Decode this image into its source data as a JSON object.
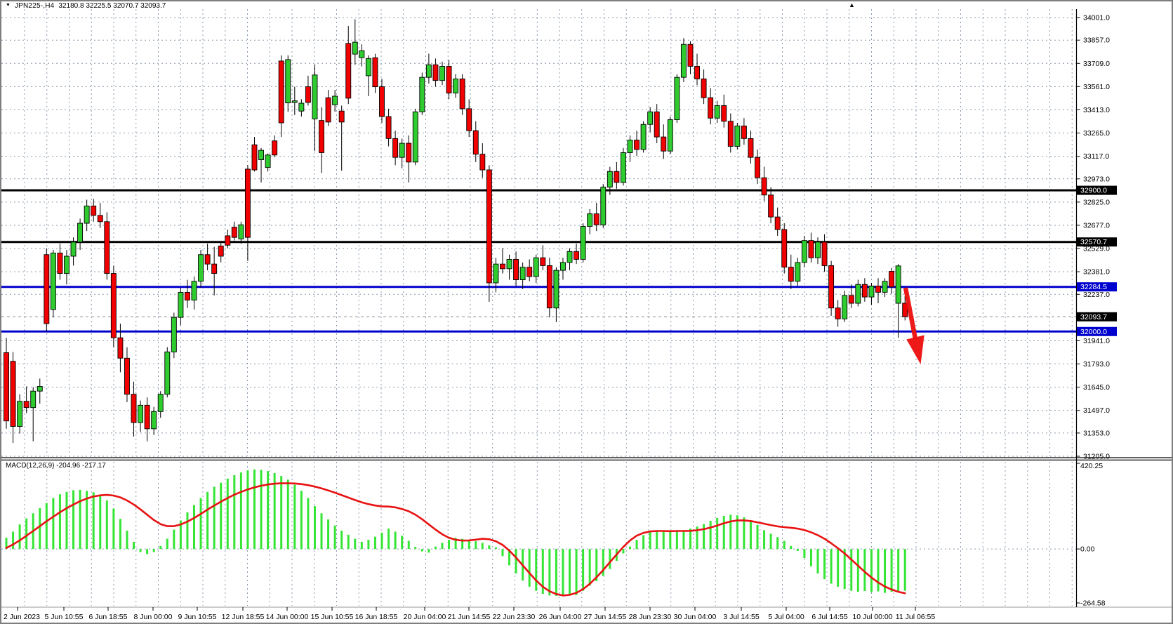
{
  "window": {
    "title": {
      "dropdown_icon": "▼",
      "symbol": "JPN225-,H4",
      "ohlc": "32180.8 32225.5 32070.7 32093.7"
    },
    "shift_marker_icon": "▲"
  },
  "colors": {
    "bull": "#2ECC2E",
    "bear": "#F20000",
    "wick": "#000000",
    "grid": "#8A99AD",
    "level_black": "#000000",
    "level_blue": "#0000CE",
    "macd_hist": "#35E535",
    "macd_signal": "#E81212",
    "arrow": "#ED0E0E",
    "axis_text": "#000000",
    "label_text_inverse": "#FFFFFF"
  },
  "price_axis": {
    "grid_labels": [
      "34001.0",
      "33857.0",
      "33709.0",
      "33561.0",
      "33413.0",
      "33265.0",
      "33117.0",
      "32973.0",
      "32825.0",
      "32677.0",
      "32529.0",
      "32381.0",
      "32237.0",
      "31941.0",
      "31793.0",
      "31645.0",
      "31497.0",
      "31353.0",
      "31205.0"
    ],
    "level_labels": [
      {
        "text": "32900.0",
        "bg": "black"
      },
      {
        "text": "32570.7",
        "bg": "black"
      },
      {
        "text": "32284.5",
        "bg": "blue"
      },
      {
        "text": "32093.7",
        "bg": "black"
      },
      {
        "text": "32000.0",
        "bg": "blue"
      }
    ]
  },
  "time_axis": {
    "labels": [
      "2 Jun 2023",
      "5 Jun 10:55",
      "6 Jun 18:55",
      "8 Jun 00:00",
      "9 Jun 10:55",
      "12 Jun 18:55",
      "14 Jun 00:00",
      "15 Jun 10:55",
      "16 Jun 18:55",
      "20 Jun 04:00",
      "21 Jun 14:55",
      "22 Jun 23:30",
      "26 Jun 04:00",
      "27 Jun 14:55",
      "28 Jun 23:30",
      "30 Jun 04:00",
      "3 Jul 14:55",
      "5 Jul 04:00",
      "6 Jul 14:55",
      "10 Jul 00:00",
      "11 Jul 06:55"
    ]
  },
  "macd_panel": {
    "label": "MACD(12,26,9)",
    "values_text": "-204.96 -217.17",
    "axis_labels": [
      "420.25",
      "0.00",
      "-264.58"
    ]
  },
  "chart_data": {
    "type": "candlestick",
    "symbol": "JPN225-,H4",
    "timeframe": "H4",
    "title": "JPN225-,H4  32180.8 32225.5 32070.7 32093.7",
    "current_bar": {
      "open": 32180.8,
      "high": 32225.5,
      "low": 32070.7,
      "close": 32093.7
    },
    "price_ylim": [
      31205.0,
      34030.0
    ],
    "grid": "dashed",
    "hlines": [
      {
        "price": 32900.0,
        "color": "black",
        "style": "solid",
        "width": 3
      },
      {
        "price": 32570.7,
        "color": "black",
        "style": "solid",
        "width": 3
      },
      {
        "price": 32284.5,
        "color": "blue",
        "style": "solid",
        "width": 3
      },
      {
        "price": 32000.0,
        "color": "blue",
        "style": "solid",
        "width": 3
      },
      {
        "price": 32093.7,
        "color": "gray",
        "style": "dashed",
        "width": 1,
        "role": "bid-line"
      }
    ],
    "annotations": [
      {
        "type": "arrow-down",
        "color": "red",
        "from_price": 32270,
        "to_price": 31810,
        "position": "after-last-candle"
      }
    ],
    "candles": [
      [
        31865,
        31960,
        31380,
        31430
      ],
      [
        31810,
        31870,
        31290,
        31395
      ],
      [
        31395,
        31600,
        31350,
        31555
      ],
      [
        31555,
        31650,
        31480,
        31515
      ],
      [
        31515,
        31645,
        31300,
        31620
      ],
      [
        31620,
        31700,
        31540,
        31650
      ],
      [
        32490,
        32530,
        32000,
        32050
      ],
      [
        32140,
        32520,
        32090,
        32500
      ],
      [
        32500,
        32560,
        32330,
        32370
      ],
      [
        32370,
        32520,
        32300,
        32480
      ],
      [
        32480,
        32600,
        32420,
        32570
      ],
      [
        32570,
        32720,
        32520,
        32690
      ],
      [
        32690,
        32840,
        32640,
        32800
      ],
      [
        32800,
        32845,
        32700,
        32740
      ],
      [
        32740,
        32820,
        32660,
        32700
      ],
      [
        32700,
        32760,
        32330,
        32370
      ],
      [
        32370,
        32420,
        31900,
        31960
      ],
      [
        31960,
        32050,
        31740,
        31830
      ],
      [
        31830,
        31900,
        31550,
        31600
      ],
      [
        31600,
        31680,
        31330,
        31420
      ],
      [
        31420,
        31560,
        31360,
        31530
      ],
      [
        31530,
        31580,
        31300,
        31380
      ],
      [
        31380,
        31520,
        31340,
        31490
      ],
      [
        31490,
        31620,
        31450,
        31600
      ],
      [
        31600,
        31900,
        31580,
        31870
      ],
      [
        31870,
        32120,
        31830,
        32090
      ],
      [
        32090,
        32280,
        32040,
        32250
      ],
      [
        32250,
        32330,
        32150,
        32200
      ],
      [
        32200,
        32350,
        32140,
        32320
      ],
      [
        32320,
        32520,
        32280,
        32490
      ],
      [
        32490,
        32560,
        32390,
        32430
      ],
      [
        32430,
        32540,
        32230,
        32370
      ],
      [
        32545,
        32570,
        32440,
        32480
      ],
      [
        32610,
        32650,
        32530,
        32550
      ],
      [
        32665,
        32700,
        32580,
        32600
      ],
      [
        32590,
        32700,
        32560,
        32680
      ],
      [
        33035,
        33060,
        32450,
        32600
      ],
      [
        33190,
        33240,
        33020,
        33030
      ],
      [
        33095,
        33170,
        32950,
        33155
      ],
      [
        33045,
        33135,
        33020,
        33125
      ],
      [
        33215,
        33250,
        33110,
        33125
      ],
      [
        33724,
        33760,
        33240,
        33330
      ],
      [
        33457,
        33760,
        33400,
        33733
      ],
      [
        33460,
        33560,
        33380,
        33470
      ],
      [
        33405,
        33480,
        33370,
        33455
      ],
      [
        33560,
        33630,
        33440,
        33460
      ],
      [
        33355,
        33700,
        33150,
        33635
      ],
      [
        33345,
        33430,
        33010,
        33140
      ],
      [
        33490,
        33540,
        33310,
        33335
      ],
      [
        33445,
        33540,
        33400,
        33500
      ],
      [
        33405,
        33440,
        33025,
        33335
      ],
      [
        33836,
        33947,
        33450,
        33487
      ],
      [
        33768,
        33990,
        33700,
        33844
      ],
      [
        33745,
        33830,
        33690,
        33790
      ],
      [
        33630,
        33760,
        33500,
        33740
      ],
      [
        33745,
        33770,
        33520,
        33560
      ],
      [
        33560,
        33610,
        33330,
        33370
      ],
      [
        33370,
        33420,
        33180,
        33230
      ],
      [
        33230,
        33280,
        33060,
        33110
      ],
      [
        33110,
        33230,
        33040,
        33200
      ],
      [
        33200,
        33250,
        32950,
        33080
      ],
      [
        33080,
        33420,
        33060,
        33400
      ],
      [
        33400,
        33650,
        33380,
        33620
      ],
      [
        33620,
        33770,
        33580,
        33700
      ],
      [
        33700,
        33740,
        33560,
        33600
      ],
      [
        33600,
        33720,
        33570,
        33690
      ],
      [
        33690,
        33730,
        33480,
        33520
      ],
      [
        33520,
        33640,
        33490,
        33610
      ],
      [
        33610,
        33640,
        33380,
        33420
      ],
      [
        33420,
        33480,
        33240,
        33280
      ],
      [
        33280,
        33340,
        33080,
        33130
      ],
      [
        33130,
        33200,
        32980,
        33030
      ],
      [
        33030,
        33060,
        32190,
        32310
      ],
      [
        32310,
        32470,
        32250,
        32430
      ],
      [
        32430,
        32530,
        32370,
        32400
      ],
      [
        32400,
        32490,
        32330,
        32460
      ],
      [
        32460,
        32510,
        32290,
        32330
      ],
      [
        32330,
        32440,
        32270,
        32410
      ],
      [
        32410,
        32460,
        32320,
        32350
      ],
      [
        32350,
        32490,
        32310,
        32470
      ],
      [
        32470,
        32550,
        32390,
        32420
      ],
      [
        32420,
        32470,
        32090,
        32150
      ],
      [
        32150,
        32410,
        32060,
        32390
      ],
      [
        32390,
        32470,
        32330,
        32440
      ],
      [
        32440,
        32530,
        32390,
        32510
      ],
      [
        32510,
        32560,
        32430,
        32460
      ],
      [
        32460,
        32690,
        32440,
        32670
      ],
      [
        32670,
        32780,
        32620,
        32750
      ],
      [
        32750,
        32820,
        32640,
        32680
      ],
      [
        32680,
        32940,
        32660,
        32920
      ],
      [
        32920,
        33050,
        32870,
        33020
      ],
      [
        33020,
        33080,
        32910,
        32950
      ],
      [
        32950,
        33170,
        32930,
        33140
      ],
      [
        33140,
        33250,
        33080,
        33220
      ],
      [
        33220,
        33280,
        33120,
        33160
      ],
      [
        33160,
        33340,
        33140,
        33320
      ],
      [
        33320,
        33430,
        33270,
        33400
      ],
      [
        33400,
        33450,
        33200,
        33240
      ],
      [
        33240,
        33320,
        33100,
        33150
      ],
      [
        33150,
        33370,
        33130,
        33350
      ],
      [
        33350,
        33640,
        33330,
        33620
      ],
      [
        33620,
        33870,
        33590,
        33830
      ],
      [
        33830,
        33850,
        33640,
        33690
      ],
      [
        33690,
        33770,
        33570,
        33610
      ],
      [
        33610,
        33670,
        33450,
        33490
      ],
      [
        33490,
        33550,
        33320,
        33360
      ],
      [
        33360,
        33470,
        33330,
        33440
      ],
      [
        33440,
        33510,
        33300,
        33340
      ],
      [
        33340,
        33390,
        33140,
        33180
      ],
      [
        33180,
        33330,
        33160,
        33310
      ],
      [
        33310,
        33360,
        33190,
        33230
      ],
      [
        33230,
        33280,
        33070,
        33110
      ],
      [
        33110,
        33160,
        32940,
        32980
      ],
      [
        32980,
        33050,
        32830,
        32870
      ],
      [
        32870,
        32920,
        32690,
        32730
      ],
      [
        32730,
        32790,
        32610,
        32650
      ],
      [
        32650,
        32690,
        32370,
        32410
      ],
      [
        32410,
        32490,
        32270,
        32320
      ],
      [
        32320,
        32470,
        32290,
        32440
      ],
      [
        32440,
        32610,
        32410,
        32580
      ],
      [
        32580,
        32630,
        32440,
        32470
      ],
      [
        32470,
        32600,
        32430,
        32570
      ],
      [
        32570,
        32620,
        32380,
        32420
      ],
      [
        32420,
        32450,
        32100,
        32150
      ],
      [
        32150,
        32200,
        32030,
        32080
      ],
      [
        32080,
        32260,
        32060,
        32230
      ],
      [
        32230,
        32300,
        32150,
        32180
      ],
      [
        32180,
        32330,
        32160,
        32300
      ],
      [
        32300,
        32340,
        32190,
        32220
      ],
      [
        32220,
        32310,
        32170,
        32290
      ],
      [
        32290,
        32340,
        32180,
        32250
      ],
      [
        32250,
        32340,
        32220,
        32320
      ],
      [
        32384,
        32405,
        32240,
        32284
      ],
      [
        32180,
        32430,
        31960,
        32418
      ],
      [
        32180.8,
        32225.5,
        32070.7,
        32093.7
      ]
    ],
    "macd": {
      "type": "macd",
      "params": [
        12,
        26,
        9
      ],
      "ylim": [
        -264.58,
        420.25
      ],
      "current": {
        "macd": -204.96,
        "signal": -217.17
      },
      "histogram": [
        55,
        85,
        120,
        150,
        175,
        200,
        225,
        250,
        268,
        280,
        288,
        290,
        285,
        278,
        265,
        238,
        198,
        148,
        90,
        35,
        -15,
        -25,
        -15,
        15,
        50,
        95,
        140,
        180,
        215,
        250,
        280,
        305,
        325,
        345,
        362,
        375,
        385,
        390,
        388,
        382,
        372,
        358,
        340,
        315,
        285,
        250,
        210,
        175,
        145,
        115,
        90,
        70,
        50,
        35,
        45,
        60,
        80,
        100,
        85,
        65,
        40,
        10,
        -12,
        -18,
        12,
        30,
        45,
        55,
        50,
        42,
        38,
        30,
        18,
        8,
        -35,
        -80,
        -120,
        -155,
        -185,
        -205,
        -220,
        -228,
        -230,
        -225,
        -222,
        -226,
        -205,
        -180,
        -158,
        -132,
        -98,
        -58,
        -22,
        12,
        45,
        68,
        85,
        92,
        90,
        86,
        88,
        92,
        100,
        110,
        122,
        138,
        152,
        162,
        168,
        165,
        155,
        140,
        118,
        92,
        75,
        58,
        40,
        15,
        -10,
        -45,
        -85,
        -120,
        -148,
        -170,
        -185,
        -196,
        -205,
        -210,
        -206,
        -212,
        -208,
        -215,
        -210,
        -207,
        -204.96
      ],
      "signal": [
        5,
        22,
        42,
        65,
        88,
        112,
        136,
        158,
        180,
        200,
        218,
        234,
        247,
        257,
        263,
        265,
        262,
        253,
        238,
        218,
        194,
        168,
        142,
        122,
        112,
        112,
        120,
        134,
        152,
        172,
        193,
        213,
        232,
        250,
        266,
        280,
        292,
        302,
        310,
        316,
        320,
        322,
        322,
        321,
        318,
        313,
        306,
        297,
        287,
        276,
        264,
        252,
        240,
        229,
        220,
        213,
        209,
        208,
        204,
        196,
        185,
        168,
        146,
        120,
        95,
        72,
        55,
        45,
        41,
        42,
        46,
        50,
        48,
        38,
        20,
        -8,
        -42,
        -80,
        -118,
        -154,
        -185,
        -207,
        -221,
        -228,
        -225,
        -215,
        -197,
        -171,
        -139,
        -103,
        -65,
        -27,
        10,
        42,
        65,
        79,
        86,
        88,
        88,
        87,
        88,
        88,
        89,
        92,
        97,
        105,
        115,
        126,
        135,
        140,
        140,
        137,
        131,
        124,
        117,
        111,
        107,
        104,
        100,
        93,
        82,
        68,
        50,
        28,
        4,
        -22,
        -52,
        -82,
        -112,
        -140,
        -164,
        -184,
        -199,
        -210,
        -217.17
      ]
    }
  }
}
